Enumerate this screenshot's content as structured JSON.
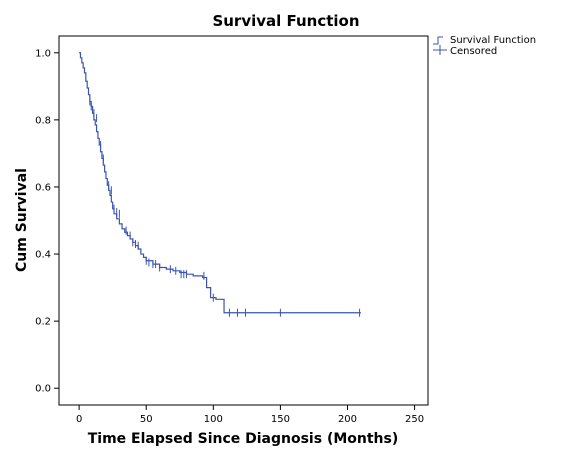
{
  "chart_data": {
    "type": "line",
    "title": "Survival Function",
    "xlabel": "Time Elapsed Since Diagnosis (Months)",
    "ylabel": "Cum Survival",
    "xlim": [
      -15,
      260
    ],
    "ylim": [
      -0.05,
      1.05
    ],
    "xticks": [
      0,
      50,
      100,
      150,
      200,
      250
    ],
    "xtick_labels": [
      "0",
      "50",
      "100",
      "150",
      "200",
      "250"
    ],
    "yticks": [
      0.0,
      0.2,
      0.4,
      0.6,
      0.8,
      1.0
    ],
    "ytick_labels": [
      "0.0",
      "0.2",
      "0.4",
      "0.6",
      "0.8",
      "1.0"
    ],
    "grid": false,
    "legend_position": "top-right-outside",
    "line_color": "#3a55b0",
    "series": [
      {
        "name": "Survival Function",
        "kind": "step",
        "x": [
          0,
          1,
          2,
          3,
          4,
          5,
          6,
          7,
          8,
          9,
          10,
          11,
          12,
          13,
          14,
          15,
          16,
          17,
          18,
          19,
          20,
          21,
          22,
          23,
          24,
          25,
          26,
          28,
          30,
          32,
          34,
          36,
          38,
          40,
          42,
          44,
          46,
          48,
          50,
          55,
          60,
          65,
          70,
          75,
          80,
          85,
          92,
          95,
          98,
          102,
          108,
          210
        ],
        "y": [
          1.0,
          0.985,
          0.97,
          0.955,
          0.94,
          0.915,
          0.895,
          0.875,
          0.855,
          0.84,
          0.82,
          0.8,
          0.785,
          0.765,
          0.745,
          0.725,
          0.705,
          0.685,
          0.665,
          0.645,
          0.625,
          0.605,
          0.59,
          0.575,
          0.555,
          0.535,
          0.52,
          0.505,
          0.49,
          0.475,
          0.465,
          0.455,
          0.445,
          0.435,
          0.425,
          0.415,
          0.4,
          0.39,
          0.38,
          0.37,
          0.36,
          0.355,
          0.35,
          0.345,
          0.34,
          0.335,
          0.33,
          0.3,
          0.27,
          0.265,
          0.225,
          0.225
        ]
      },
      {
        "name": "Censored",
        "kind": "marker",
        "x": [
          8,
          9,
          10,
          11,
          13,
          16,
          18,
          22,
          24,
          26,
          28,
          30,
          35,
          38,
          40,
          42,
          44,
          50,
          52,
          55,
          57,
          60,
          68,
          72,
          76,
          78,
          80,
          93,
          100,
          112,
          118,
          124,
          150,
          209
        ],
        "y": [
          0.855,
          0.84,
          0.83,
          0.82,
          0.805,
          0.725,
          0.685,
          0.605,
          0.59,
          0.535,
          0.525,
          0.52,
          0.47,
          0.455,
          0.435,
          0.43,
          0.425,
          0.38,
          0.375,
          0.37,
          0.37,
          0.36,
          0.355,
          0.35,
          0.34,
          0.34,
          0.34,
          0.335,
          0.27,
          0.225,
          0.225,
          0.225,
          0.225,
          0.225
        ]
      }
    ]
  }
}
